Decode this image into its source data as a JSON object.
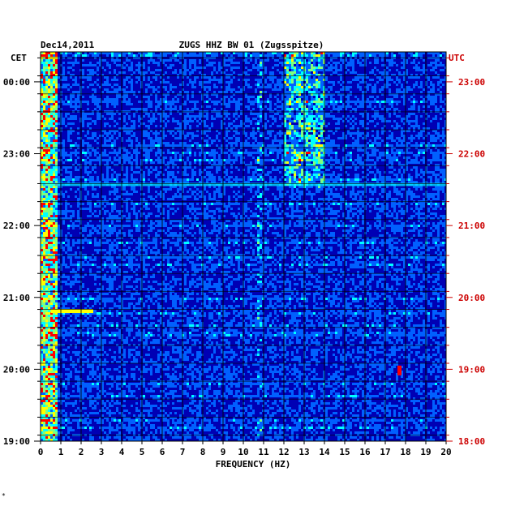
{
  "chart_data": {
    "type": "heatmap",
    "date": "Dec14,2011",
    "title": "ZUGS HHZ BW 01 (Zugsspitze)",
    "left_axis_label": "CET",
    "right_axis_label": "UTC",
    "xlabel": "FREQUENCY (HZ)",
    "xlim": [
      0,
      20
    ],
    "x_ticks": [
      "0",
      "1",
      "2",
      "3",
      "4",
      "5",
      "6",
      "7",
      "8",
      "9",
      "10",
      "11",
      "12",
      "13",
      "14",
      "15",
      "16",
      "17",
      "18",
      "19",
      "20"
    ],
    "cet_ticks": [
      "00:00",
      "23:00",
      "22:00",
      "21:00",
      "20:00",
      "19:00"
    ],
    "utc_ticks": [
      "23:00",
      "22:00",
      "21:00",
      "20:00",
      "19:00",
      "18:00"
    ],
    "grid": true,
    "colormap": [
      "#000080",
      "#0000ff",
      "#00ffff",
      "#ffff00",
      "#ff0000"
    ],
    "energy_bands_hz": [
      {
        "range": [
          0,
          0.8
        ],
        "intensity": "high",
        "note": "microseism band, all hours"
      },
      {
        "range": [
          12,
          14
        ],
        "intensity": "medium-high",
        "note": "strong in upper half, about 22:35 CET to top"
      },
      {
        "range": [
          10.6,
          10.8
        ],
        "intensity": "narrow line",
        "note": "intermittent vertical line"
      }
    ],
    "events": [
      {
        "cet_time": "22:35",
        "range_hz": [
          0,
          20
        ],
        "note": "broadband horizontal streak"
      },
      {
        "cet_time": "20:49",
        "range_hz": [
          0.5,
          2.6
        ],
        "note": "short bright streak"
      },
      {
        "cet_time": "19:59",
        "range_hz": [
          17.6,
          17.8
        ],
        "note": "small red spot"
      }
    ]
  },
  "footnote": "*"
}
